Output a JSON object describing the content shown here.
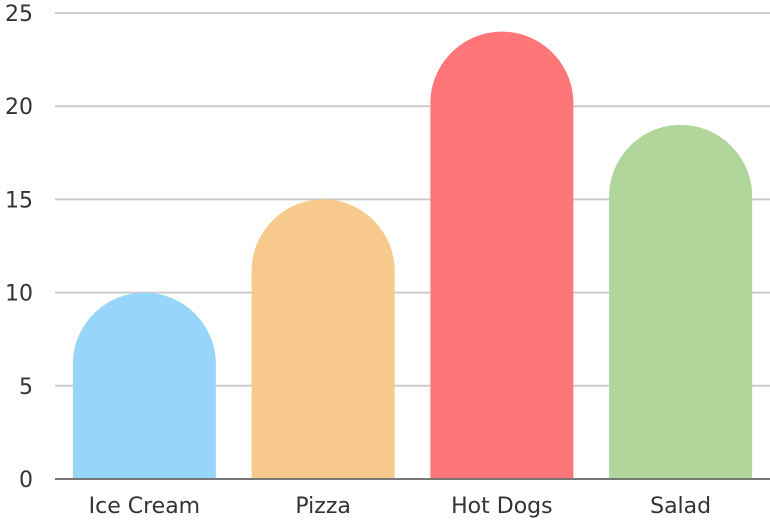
{
  "chart_data": {
    "type": "bar",
    "categories": [
      "Ice Cream",
      "Pizza",
      "Hot Dogs",
      "Salad"
    ],
    "values": [
      10,
      15,
      24,
      19
    ],
    "colors": [
      "#97d5fb",
      "#f7c98c",
      "#fe7677",
      "#b0d69c"
    ],
    "title": "",
    "xlabel": "",
    "ylabel": "",
    "ylim": [
      0,
      25
    ],
    "yticks": [
      0,
      5,
      10,
      15,
      20,
      25
    ],
    "grid": true,
    "bar_style": "rounded-top"
  }
}
